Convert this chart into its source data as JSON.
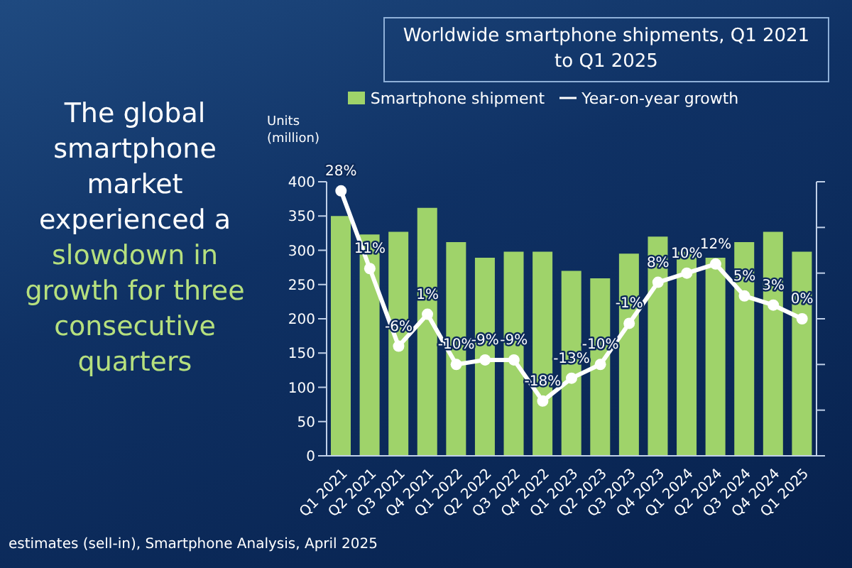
{
  "chart_data": {
    "type": "bar",
    "title": "Worldwide smartphone shipments, Q1 2021 to Q1 2025",
    "ylabel": "Units (million)",
    "annotations": [
      "The global smartphone market experienced a",
      "slowdown in growth for three consecutive quarters",
      "estimates (sell-in), Smartphone Analysis, April 2025"
    ],
    "categories": [
      "Q1 2021",
      "Q2 2021",
      "Q3 2021",
      "Q4 2021",
      "Q1 2022",
      "Q2 2022",
      "Q3 2022",
      "Q4 2022",
      "Q1 2023",
      "Q2 2023",
      "Q3 2023",
      "Q4 2023",
      "Q1 2024",
      "Q2 2024",
      "Q3 2024",
      "Q4 2024",
      "Q1 2025"
    ],
    "series": [
      {
        "name": "Smartphone shipment",
        "color": "#9fd36a",
        "values": [
          350,
          323,
          327,
          362,
          312,
          289,
          298,
          298,
          270,
          259,
          295,
          320,
          298,
          289,
          312,
          327,
          298
        ]
      },
      {
        "name": "Year-on-year growth",
        "type": "line",
        "axis": "y2",
        "color": "#ffffff",
        "values": [
          28,
          11,
          -6,
          1,
          -10,
          -9,
          -9,
          -18,
          -13,
          -10,
          -1,
          8,
          10,
          12,
          5,
          3,
          0
        ],
        "value_labels": [
          "28%",
          "11%",
          "-6%",
          "1%",
          "-10%",
          "-9%",
          "-9%",
          "-18%",
          "-13%",
          "-10%",
          "-1%",
          "8%",
          "10%",
          "12%",
          "5%",
          "3%",
          "0%"
        ]
      }
    ],
    "ylim": [
      0,
      400
    ],
    "yticks": [
      0,
      50,
      100,
      150,
      200,
      250,
      300,
      350,
      400
    ],
    "y2lim": [
      -30,
      30
    ],
    "y2ticks": [
      {
        "value": -30,
        "label": null
      },
      {
        "value": -20,
        "label": null
      },
      {
        "value": -10,
        "label": null
      },
      {
        "value": 0,
        "label": null
      },
      {
        "value": 10,
        "label": null
      },
      {
        "value": 20,
        "label": null
      },
      {
        "value": 30,
        "label": null
      }
    ],
    "legend": "top",
    "marker": "circle"
  }
}
